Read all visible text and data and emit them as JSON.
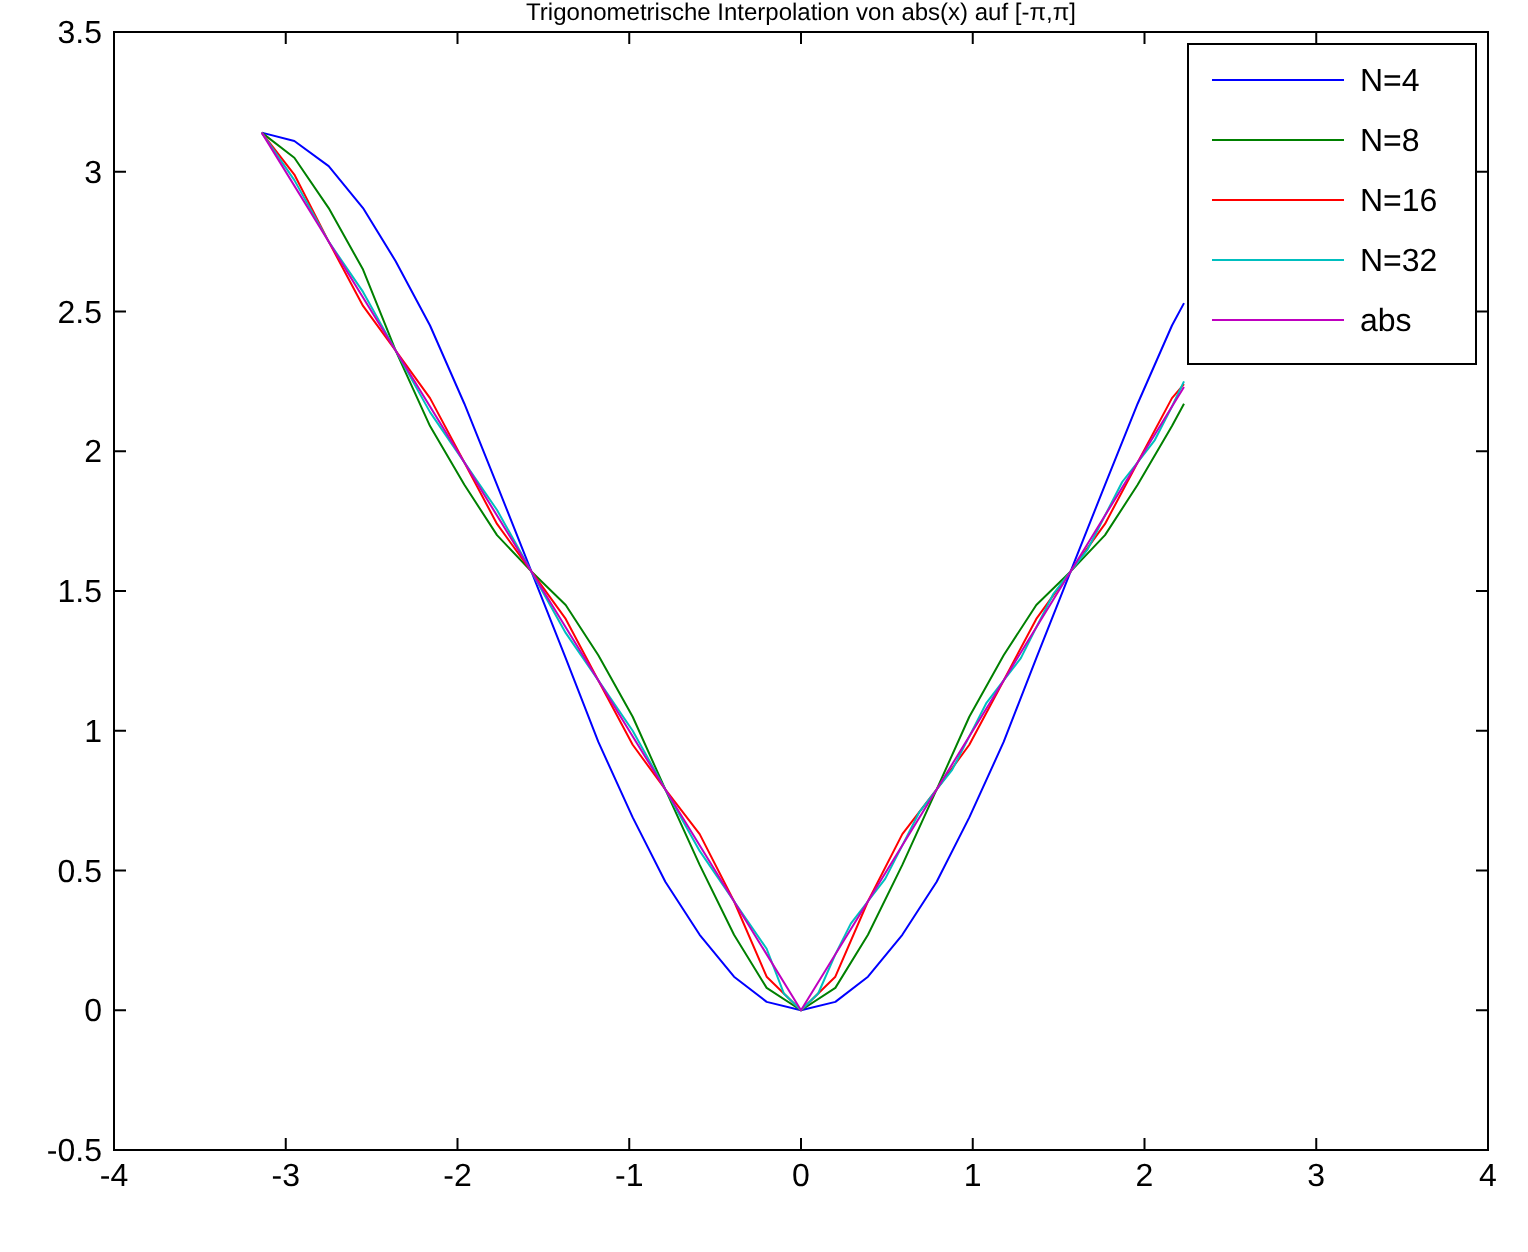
{
  "chart_data": {
    "type": "line",
    "title": "Trigonometrische Interpolation von abs(x) auf [-π,π]",
    "xlim": [
      -4,
      4
    ],
    "xticks": [
      -4,
      -3,
      -2,
      -1,
      0,
      1,
      2,
      3,
      4
    ],
    "ylim": [
      -0.5,
      3.5
    ],
    "yticks": [
      -0.5,
      0,
      0.5,
      1,
      1.5,
      2,
      2.5,
      3,
      3.5
    ],
    "grid": false,
    "legend": "top right",
    "line_style": "solid",
    "marker": "none",
    "series": [
      {
        "name": "N=4",
        "color": "#0000ff",
        "x": [
          -3.14,
          -2.95,
          -2.75,
          -2.55,
          -2.36,
          -2.16,
          -1.96,
          -1.77,
          -1.57,
          -1.37,
          -1.18,
          -0.98,
          -0.79,
          -0.59,
          -0.39,
          -0.2,
          0,
          0.2,
          0.39,
          0.59,
          0.79,
          0.98,
          1.18,
          1.37,
          1.57,
          1.77,
          1.96,
          2.16,
          2.23
        ],
        "values": [
          3.14,
          3.11,
          3.02,
          2.87,
          2.68,
          2.45,
          2.17,
          1.88,
          1.57,
          1.26,
          0.96,
          0.69,
          0.46,
          0.27,
          0.12,
          0.03,
          0,
          0.03,
          0.12,
          0.27,
          0.46,
          0.69,
          0.96,
          1.26,
          1.57,
          1.88,
          2.17,
          2.45,
          2.53
        ]
      },
      {
        "name": "N=8",
        "color": "#008000",
        "x": [
          -3.14,
          -2.95,
          -2.75,
          -2.55,
          -2.36,
          -2.16,
          -1.96,
          -1.77,
          -1.57,
          -1.37,
          -1.18,
          -0.98,
          -0.79,
          -0.59,
          -0.39,
          -0.2,
          0,
          0.2,
          0.39,
          0.59,
          0.79,
          0.98,
          1.18,
          1.37,
          1.57,
          1.77,
          1.96,
          2.16,
          2.23
        ],
        "values": [
          3.14,
          3.05,
          2.87,
          2.65,
          2.36,
          2.09,
          1.88,
          1.7,
          1.57,
          1.45,
          1.27,
          1.05,
          0.79,
          0.52,
          0.27,
          0.08,
          0,
          0.08,
          0.27,
          0.52,
          0.79,
          1.05,
          1.27,
          1.45,
          1.57,
          1.7,
          1.88,
          2.09,
          2.17
        ]
      },
      {
        "name": "N=16",
        "color": "#ff0000",
        "x": [
          -3.14,
          -2.95,
          -2.75,
          -2.55,
          -2.36,
          -2.16,
          -1.96,
          -1.77,
          -1.57,
          -1.37,
          -1.18,
          -0.98,
          -0.79,
          -0.59,
          -0.39,
          -0.2,
          0,
          0.2,
          0.39,
          0.59,
          0.79,
          0.98,
          1.18,
          1.37,
          1.57,
          1.77,
          1.96,
          2.16,
          2.23
        ],
        "values": [
          3.14,
          2.99,
          2.75,
          2.52,
          2.36,
          2.19,
          1.96,
          1.74,
          1.57,
          1.4,
          1.18,
          0.95,
          0.79,
          0.63,
          0.39,
          0.12,
          0,
          0.12,
          0.39,
          0.63,
          0.79,
          0.95,
          1.18,
          1.4,
          1.57,
          1.74,
          1.96,
          2.19,
          2.24
        ]
      },
      {
        "name": "N=32",
        "color": "#00bfbf",
        "x": [
          -3.14,
          -2.95,
          -2.75,
          -2.55,
          -2.36,
          -2.16,
          -1.96,
          -1.77,
          -1.57,
          -1.37,
          -1.18,
          -0.98,
          -0.79,
          -0.59,
          -0.39,
          -0.2,
          -0.1,
          0,
          0.1,
          0.2,
          0.29,
          0.39,
          0.49,
          0.59,
          0.69,
          0.79,
          0.88,
          0.98,
          1.08,
          1.18,
          1.28,
          1.37,
          1.47,
          1.57,
          1.67,
          1.77,
          1.87,
          1.96,
          2.06,
          2.16,
          2.23
        ],
        "values": [
          3.14,
          2.97,
          2.75,
          2.57,
          2.36,
          2.14,
          1.96,
          1.79,
          1.57,
          1.35,
          1.18,
          1.0,
          0.79,
          0.57,
          0.39,
          0.22,
          0.06,
          0,
          0.06,
          0.2,
          0.31,
          0.39,
          0.47,
          0.59,
          0.71,
          0.79,
          0.86,
          0.98,
          1.1,
          1.18,
          1.26,
          1.37,
          1.49,
          1.57,
          1.65,
          1.77,
          1.89,
          1.96,
          2.04,
          2.16,
          2.25
        ]
      },
      {
        "name": "abs",
        "color": "#bf00bf",
        "x": [
          -3.14,
          0,
          2.23
        ],
        "values": [
          3.14,
          0,
          2.23
        ]
      }
    ]
  }
}
